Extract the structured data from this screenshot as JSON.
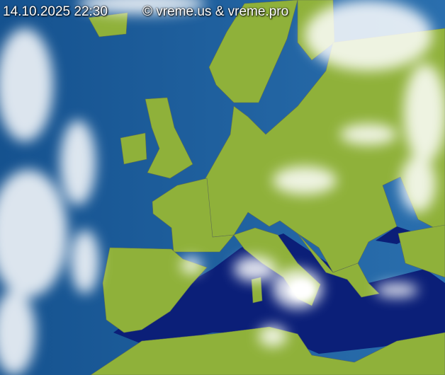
{
  "header": {
    "timestamp": "14.10.2025 22:30",
    "copyright": "© vreme.us & vreme.pro"
  },
  "map": {
    "type": "infrared satellite image",
    "region": "Europe",
    "colors": {
      "ocean": "#1e5f9c",
      "sea_dark": "#0b1f78",
      "land": "#8fb13a",
      "cloud": "#ffffff",
      "borders": "#555555"
    }
  }
}
